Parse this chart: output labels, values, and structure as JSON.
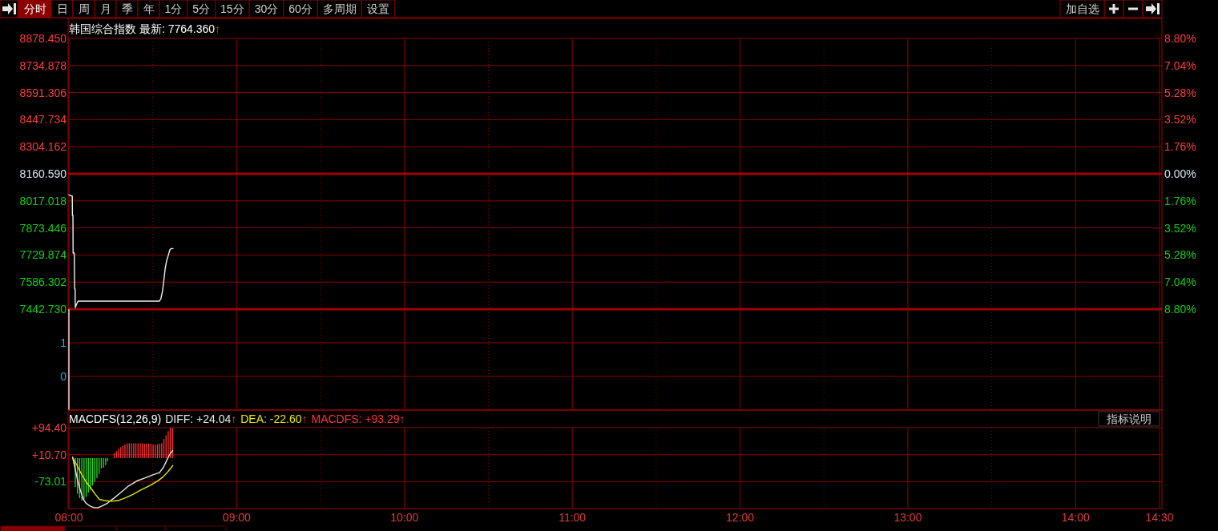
{
  "chart_data": [
    {
      "type": "other",
      "annotations": [
        "分时",
        "日",
        "周",
        "月",
        "季",
        "年",
        "1分",
        "5分",
        "15分",
        "30分",
        "60分",
        "多周期",
        "设置"
      ]
    },
    {
      "type": "other",
      "annotations": [
        "加自选"
      ]
    },
    {
      "type": "line",
      "title": "韩国综合指数 最新: 7764.360↑",
      "x": [
        8.0,
        8.016,
        8.02,
        8.021,
        8.024,
        8.025,
        8.032,
        8.034,
        8.037,
        8.038,
        8.044,
        8.054,
        8.539,
        8.548,
        8.558,
        8.564,
        8.574,
        8.583,
        8.593,
        8.602,
        8.61,
        8.621
      ],
      "series": [
        {
          "color": "#f0f0f0",
          "values": [
            8049,
            8043,
            8043,
            7940,
            7940,
            7740,
            7740,
            7550,
            7550,
            7451,
            7465,
            7485,
            7485,
            7497,
            7539,
            7582,
            7659,
            7702,
            7730,
            7758,
            7764,
            7764
          ]
        }
      ],
      "xlim": [
        8,
        14.5
      ],
      "ylim": [
        7442.73,
        8878.45
      ],
      "yticks": [
        {
          "value": 8878.45,
          "label": "8878.450"
        },
        {
          "value": 8734.878,
          "label": "8734.878"
        },
        {
          "value": 8591.306,
          "label": "8591.306"
        },
        {
          "value": 8447.734,
          "label": "8447.734"
        },
        {
          "value": 8304.162,
          "label": "8304.162"
        },
        {
          "value": 8160.59,
          "label": "8160.590"
        },
        {
          "value": 8017.018,
          "label": "8017.018"
        },
        {
          "value": 7873.446,
          "label": "7873.446"
        },
        {
          "value": 7729.874,
          "label": "7729.874"
        },
        {
          "value": 7586.302,
          "label": "7586.302"
        },
        {
          "value": 7442.73,
          "label": "7442.730"
        }
      ],
      "y2lim": [
        -8.8,
        8.8
      ],
      "y2ticks": [
        {
          "value": 8.8,
          "label": "8.80%"
        },
        {
          "value": 7.04,
          "label": "7.04%"
        },
        {
          "value": 5.28,
          "label": "5.28%"
        },
        {
          "value": 3.52,
          "label": "3.52%"
        },
        {
          "value": 1.76,
          "label": "1.76%"
        },
        {
          "value": 0,
          "label": "0.00%"
        },
        {
          "value": -1.76,
          "label": "1.76%"
        },
        {
          "value": -3.52,
          "label": "3.52%"
        },
        {
          "value": -5.28,
          "label": "5.28%"
        },
        {
          "value": -7.04,
          "label": "7.04%"
        },
        {
          "value": -8.8,
          "label": "8.80%"
        }
      ],
      "ref_lines": [
        {
          "axis": "y",
          "value": 8160.59,
          "color": "#a00000"
        }
      ],
      "grid": true,
      "tick_labels": "y"
    },
    {
      "type": "bar",
      "x": [
        8
      ],
      "color": "#f0f0f0",
      "values": [
        3
      ],
      "base": [
        -1
      ],
      "xlim": [
        8,
        14.5
      ],
      "ylim": [
        -1,
        2
      ],
      "yticks": [
        0,
        1
      ],
      "grid": true,
      "tick_labels": "y"
    },
    {
      "type": "line",
      "title": "MACDFS(12,26,9)",
      "annotations": [
        "指标说明"
      ],
      "legend": "top left",
      "series": [
        {
          "name": "DIFF: +24.04↑",
          "type": "line",
          "color": "#e8e8e8",
          "x": [
            8.022,
            8.035,
            8.054,
            8.07,
            8.086,
            8.102,
            8.126,
            8.15,
            8.173,
            8.197,
            8.229,
            8.269,
            8.309,
            8.357,
            8.405,
            8.452,
            8.5,
            8.54,
            8.564,
            8.587,
            8.603,
            8.619
          ],
          "values": [
            3,
            -28,
            -74,
            -103,
            -128,
            -140,
            -149,
            -154,
            -154,
            -149,
            -140,
            -124,
            -107,
            -86,
            -71,
            -62,
            -52,
            -45,
            -28,
            -3,
            13,
            24
          ]
        },
        {
          "name": "DEA: -22.60↑",
          "type": "line",
          "color": "#e6e600",
          "x": [
            8.022,
            8.046,
            8.07,
            8.102,
            8.134,
            8.158,
            8.182,
            8.214,
            8.245,
            8.293,
            8.333,
            8.381,
            8.428,
            8.484,
            8.532,
            8.564,
            8.592,
            8.619
          ],
          "values": [
            1,
            -20,
            -45,
            -74,
            -95,
            -113,
            -128,
            -132,
            -134,
            -132,
            -124,
            -113,
            -99,
            -85,
            -70,
            -57,
            -41,
            -23
          ]
        },
        {
          "name": "MACDFS: +93.29↑",
          "type": "bar",
          "color": "#ff3232",
          "x": [
            8.038,
            8.051,
            8.064,
            8.077,
            8.09,
            8.103,
            8.116,
            8.128,
            8.141,
            8.154,
            8.167,
            8.18,
            8.193,
            8.206,
            8.219,
            8.231,
            8.27,
            8.283,
            8.296,
            8.309,
            8.322,
            8.334,
            8.347,
            8.36,
            8.373,
            8.386,
            8.399,
            8.412,
            8.425,
            8.438,
            8.45,
            8.463,
            8.476,
            8.489,
            8.502,
            8.515,
            8.528,
            8.541,
            8.553,
            8.566,
            8.579,
            8.592,
            8.605,
            8.618
          ],
          "values": [
            -90,
            -111,
            -124,
            -132,
            -128,
            -120,
            -107,
            -99,
            -85,
            -74,
            -62,
            -49,
            -32,
            -30,
            -22,
            -10,
            15,
            22,
            28,
            34,
            38,
            42,
            45,
            46,
            46,
            46,
            46,
            46,
            46,
            46,
            45,
            45,
            45,
            45,
            42,
            42,
            43,
            45,
            46,
            59,
            71,
            84,
            94,
            93
          ],
          "colors": [
            "#22dd22",
            "#22dd22",
            "#22dd22",
            "#22dd22",
            "#22dd22",
            "#22dd22",
            "#22dd22",
            "#22dd22",
            "#22dd22",
            "#22dd22",
            "#22dd22",
            "#22dd22",
            "#22dd22",
            "#22dd22",
            "#22dd22",
            "#22dd22",
            "#ff3232",
            "#ff3232",
            "#ff3232",
            "#ff3232",
            "#ff3232",
            "#ff3232",
            "#ff3232",
            "#ff3232",
            "#ff3232",
            "#ff3232",
            "#ff3232",
            "#ff3232",
            "#ff3232",
            "#ff3232",
            "#ff3232",
            "#ff3232",
            "#ff3232",
            "#ff3232",
            "#ff3232",
            "#ff3232",
            "#ff3232",
            "#ff3232",
            "#ff3232",
            "#ff3232",
            "#ff3232",
            "#ff3232",
            "#ff3232",
            "#ff3232"
          ]
        }
      ],
      "xlim": [
        8,
        14.5
      ],
      "xticks": [
        {
          "value": 8,
          "label": "08:00"
        },
        {
          "value": 8.5,
          "label": null
        },
        {
          "value": 9,
          "label": "09:00"
        },
        {
          "value": 9.5,
          "label": null
        },
        {
          "value": 10,
          "label": "10:00"
        },
        {
          "value": 10.5,
          "label": null
        },
        {
          "value": 11,
          "label": "11:00"
        },
        {
          "value": 11.5,
          "label": null
        },
        {
          "value": 12,
          "label": "12:00"
        },
        {
          "value": 12.5,
          "label": null
        },
        {
          "value": 13,
          "label": "13:00"
        },
        {
          "value": 13.5,
          "label": null
        },
        {
          "value": 14,
          "label": "14:00"
        },
        {
          "value": 14.5,
          "label": "14:30"
        }
      ],
      "ylim": [
        -156.7,
        94.4
      ],
      "yticks": [
        {
          "value": 94.4,
          "label": "+94.40"
        },
        {
          "value": 10.7,
          "label": "+10.70"
        },
        {
          "value": -73.01,
          "label": "-73.01"
        }
      ],
      "grid": true
    }
  ]
}
